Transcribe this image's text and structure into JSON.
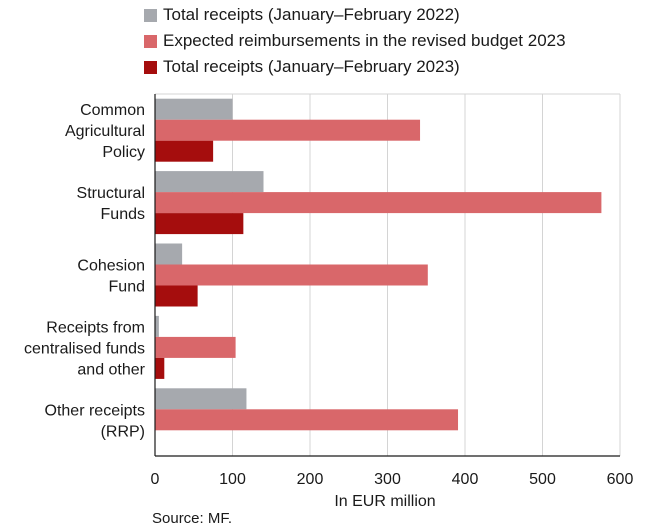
{
  "chart_data": {
    "type": "bar",
    "orientation": "horizontal",
    "categories": [
      [
        "Common",
        "Agricultural",
        "Policy"
      ],
      [
        "Structural",
        "Funds"
      ],
      [
        "Cohesion",
        "Fund"
      ],
      [
        "Receipts from",
        "centralised funds",
        "and other"
      ],
      [
        "Other receipts",
        "(RRP)"
      ]
    ],
    "series": [
      {
        "name": "Total receipts (January–February 2022)",
        "color": "#a6a9ae",
        "values": [
          100,
          140,
          35,
          5,
          118
        ]
      },
      {
        "name": "Expected reimbursements in the revised budget 2023",
        "color": "#d9676a",
        "values": [
          342,
          576,
          352,
          104,
          391
        ]
      },
      {
        "name": "Total receipts (January–February 2023)",
        "color": "#a50d0d",
        "values": [
          75,
          114,
          55,
          12,
          0
        ]
      }
    ],
    "xlim": [
      0,
      600
    ],
    "xticks": [
      0,
      100,
      200,
      300,
      400,
      500,
      600
    ],
    "xlabel": "In EUR million",
    "grid": true,
    "legend_position": "top"
  },
  "source": "Source: MF."
}
